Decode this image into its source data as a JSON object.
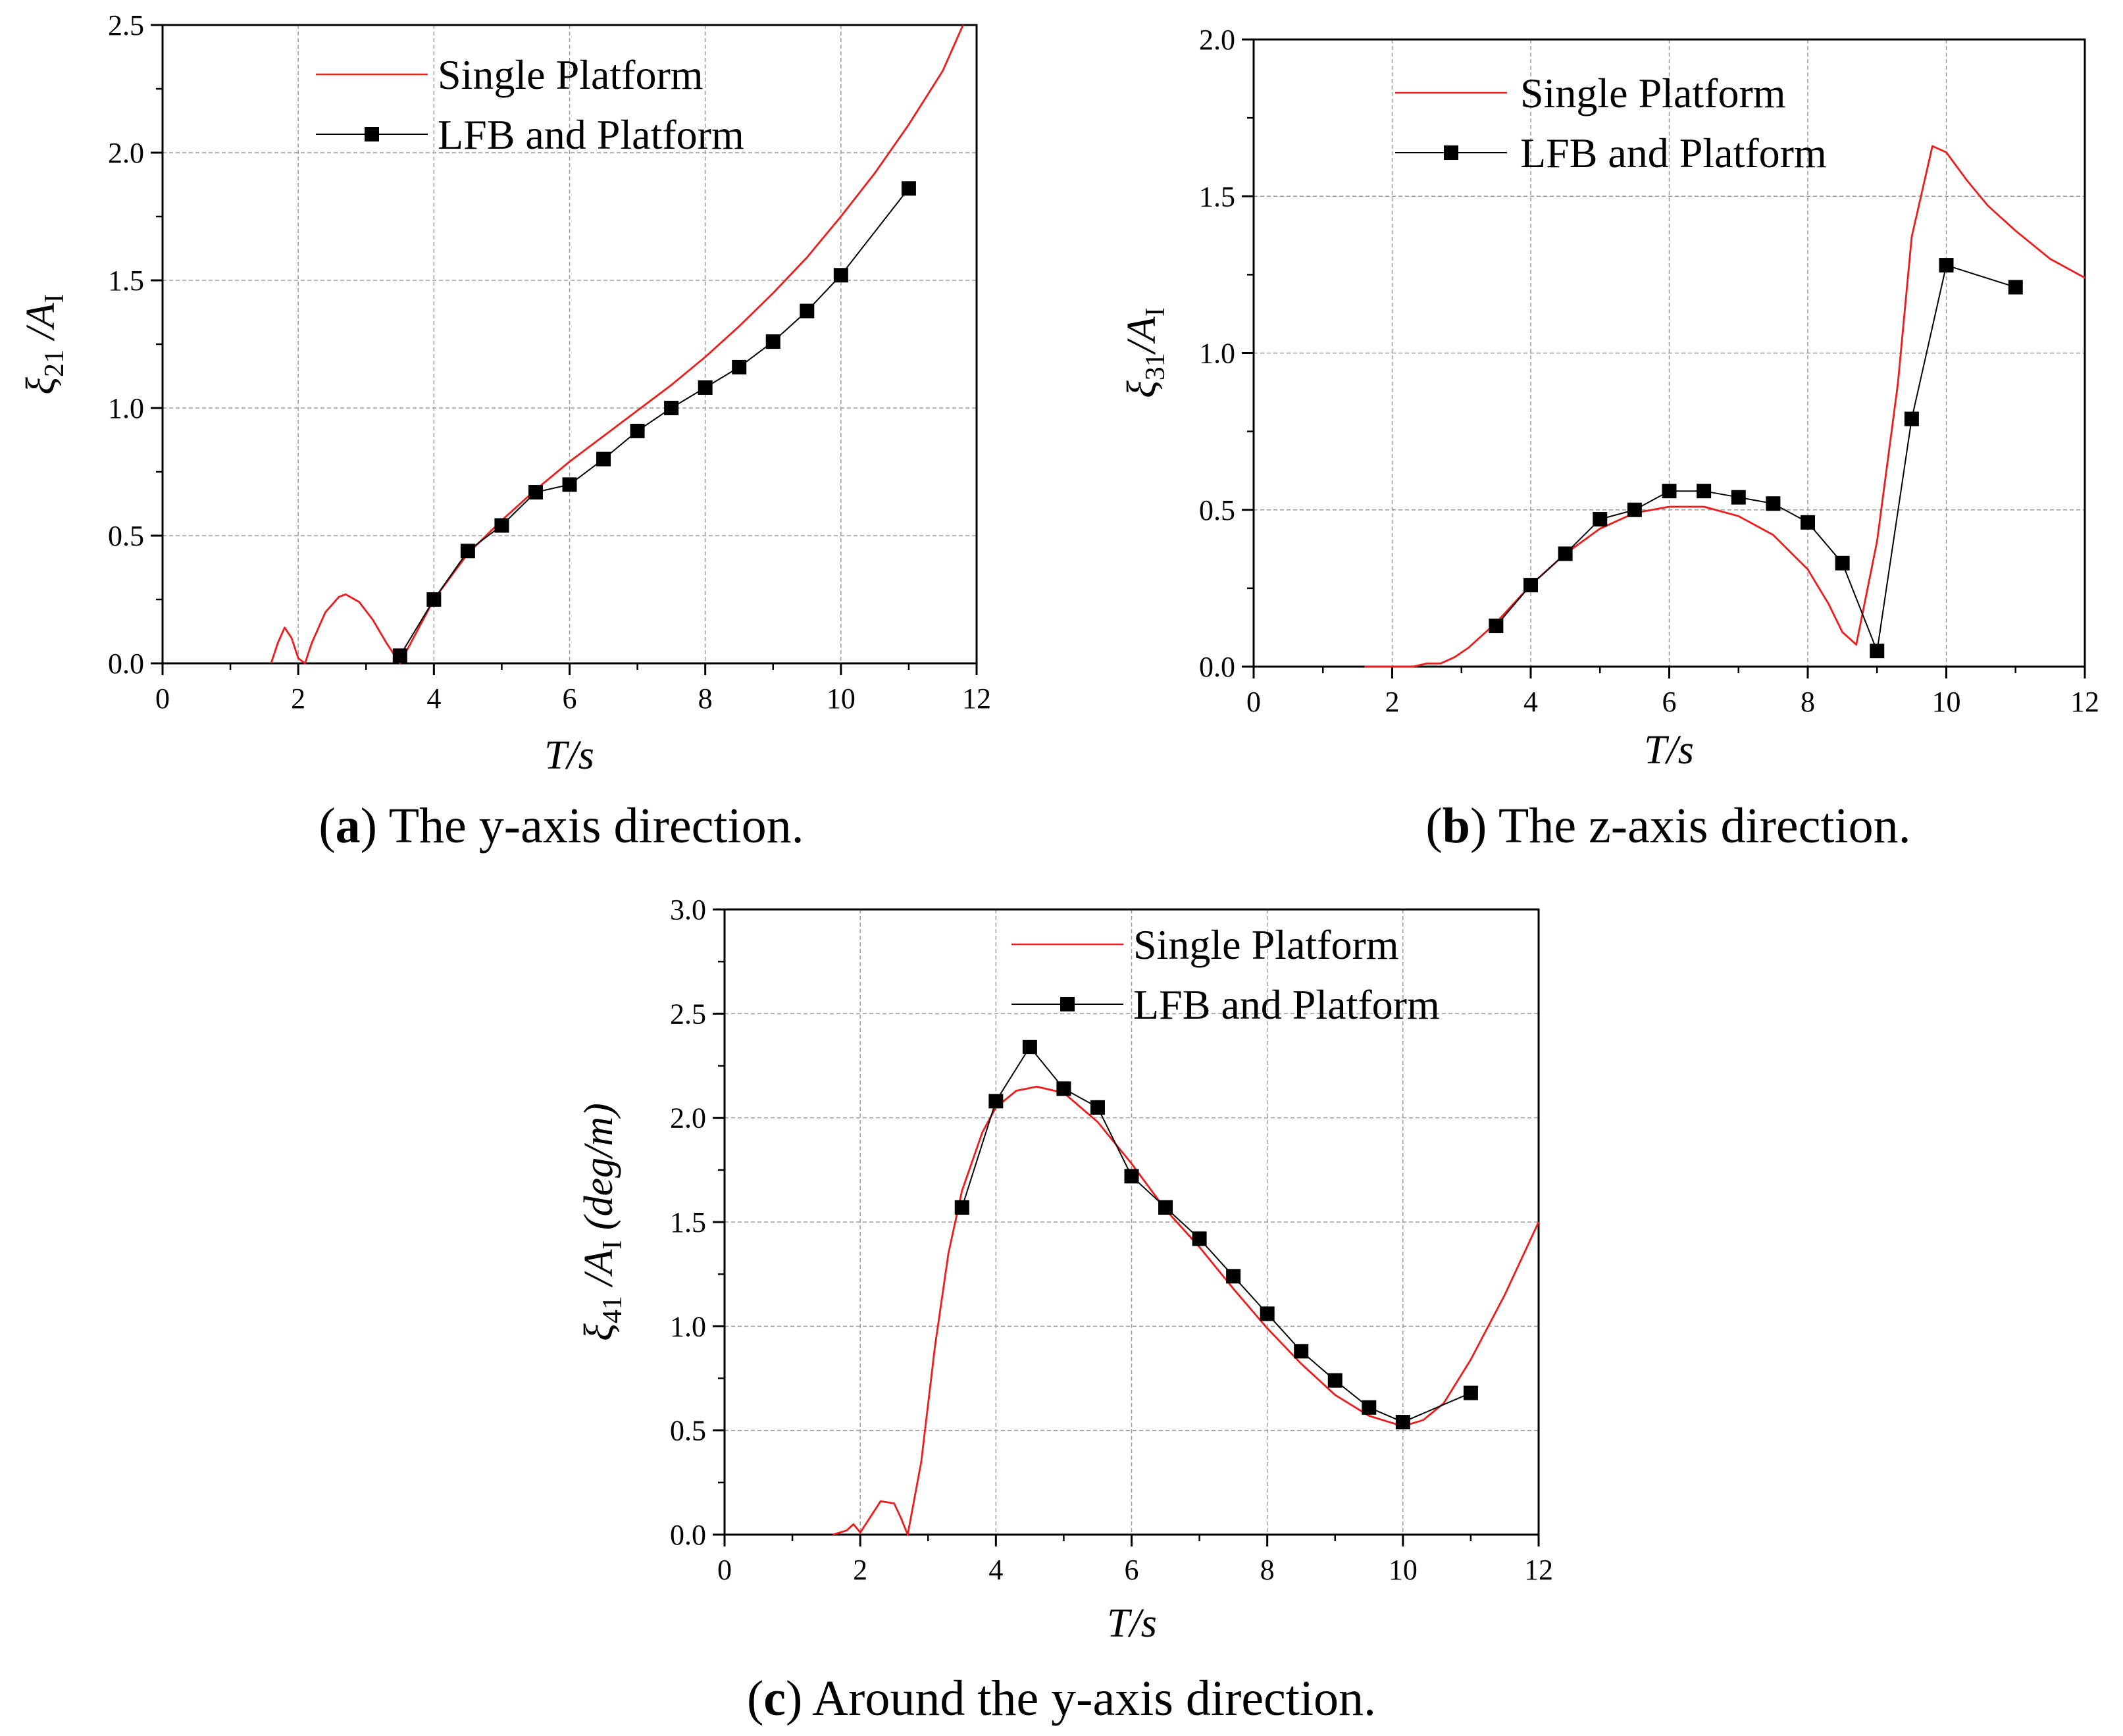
{
  "chart_data": [
    {
      "type": "line",
      "caption": {
        "letter": "a",
        "text": ") The y-axis direction."
      },
      "xlabel": "T/s",
      "ylabel": {
        "symbol": "ξ",
        "sub": "21",
        "slash": " /A",
        "sub2": "I",
        "unit": ""
      },
      "xlim": [
        0,
        12
      ],
      "ylim": [
        0,
        2.5
      ],
      "xticks": [
        0,
        2,
        4,
        6,
        8,
        10,
        12
      ],
      "yticks": [
        0.0,
        0.5,
        1.0,
        1.5,
        2.0,
        2.5
      ],
      "yticklabels": [
        "0.0",
        "0.5",
        "1.0",
        "1.5",
        "2.0",
        "2.5"
      ],
      "grid": true,
      "legend_position": "top-left",
      "series": [
        {
          "name": "Single Platform",
          "color": "#ee1c1c",
          "marker": "none",
          "x": [
            1.6,
            1.7,
            1.8,
            1.9,
            2.0,
            2.1,
            2.2,
            2.4,
            2.6,
            2.7,
            2.9,
            3.1,
            3.3,
            3.5,
            3.8,
            4.0,
            4.5,
            5.0,
            5.5,
            6.0,
            6.5,
            7.0,
            7.5,
            8.0,
            8.5,
            9.0,
            9.5,
            10.0,
            10.5,
            11.0,
            11.5,
            11.8
          ],
          "y": [
            0.0,
            0.08,
            0.14,
            0.1,
            0.02,
            0.0,
            0.08,
            0.2,
            0.26,
            0.27,
            0.24,
            0.17,
            0.08,
            0.0,
            0.15,
            0.25,
            0.43,
            0.56,
            0.68,
            0.79,
            0.89,
            0.99,
            1.09,
            1.2,
            1.32,
            1.45,
            1.59,
            1.75,
            1.92,
            2.11,
            2.32,
            2.5
          ]
        },
        {
          "name": "LFB and Platform",
          "color": "#000000",
          "marker": "square",
          "x": [
            3.5,
            4.0,
            4.5,
            5.0,
            5.5,
            6.0,
            6.5,
            7.0,
            7.5,
            8.0,
            8.5,
            9.0,
            9.5,
            10.0,
            11.0
          ],
          "y": [
            0.03,
            0.25,
            0.44,
            0.54,
            0.67,
            0.7,
            0.8,
            0.91,
            1.0,
            1.08,
            1.16,
            1.26,
            1.38,
            1.52,
            1.86
          ]
        }
      ]
    },
    {
      "type": "line",
      "caption": {
        "letter": "b",
        "text": ") The z-axis direction."
      },
      "xlabel": "T/s",
      "ylabel": {
        "symbol": "ξ",
        "sub": "31",
        "slash": "/A",
        "sub2": "I",
        "unit": ""
      },
      "xlim": [
        0,
        12
      ],
      "ylim": [
        0,
        2.0
      ],
      "xticks": [
        0,
        2,
        4,
        6,
        8,
        10,
        12
      ],
      "yticks": [
        0.0,
        0.5,
        1.0,
        1.5,
        2.0
      ],
      "yticklabels": [
        "0.0",
        "0.5",
        "1.0",
        "1.5",
        "2.0"
      ],
      "grid": true,
      "legend_position": "top-left",
      "series": [
        {
          "name": "Single Platform",
          "color": "#ee1c1c",
          "marker": "none",
          "x": [
            1.6,
            2.0,
            2.3,
            2.5,
            2.7,
            2.9,
            3.1,
            3.5,
            4.0,
            4.5,
            5.0,
            5.5,
            6.0,
            6.5,
            7.0,
            7.5,
            8.0,
            8.3,
            8.5,
            8.7,
            9.0,
            9.3,
            9.5,
            9.8,
            10.0,
            10.3,
            10.6,
            11.0,
            11.5,
            12.0
          ],
          "y": [
            0.0,
            0.0,
            0.0,
            0.01,
            0.01,
            0.03,
            0.06,
            0.14,
            0.26,
            0.36,
            0.44,
            0.49,
            0.51,
            0.51,
            0.48,
            0.42,
            0.31,
            0.2,
            0.11,
            0.07,
            0.4,
            0.9,
            1.37,
            1.66,
            1.64,
            1.55,
            1.47,
            1.39,
            1.3,
            1.24
          ]
        },
        {
          "name": "LFB and Platform",
          "color": "#000000",
          "marker": "square",
          "x": [
            3.5,
            4.0,
            4.5,
            5.0,
            5.5,
            6.0,
            6.5,
            7.0,
            7.5,
            8.0,
            8.5,
            9.0,
            9.5,
            10.0,
            11.0
          ],
          "y": [
            0.13,
            0.26,
            0.36,
            0.47,
            0.5,
            0.56,
            0.56,
            0.54,
            0.52,
            0.46,
            0.33,
            0.05,
            0.79,
            1.28,
            1.21
          ]
        }
      ]
    },
    {
      "type": "line",
      "caption": {
        "letter": "c",
        "text": ") Around the y-axis direction."
      },
      "xlabel": "T/s",
      "ylabel": {
        "symbol": "ξ",
        "sub": "41",
        "slash": " /A",
        "sub2": "I",
        "unit": " (deg/m)"
      },
      "xlim": [
        0,
        12
      ],
      "ylim": [
        0,
        3.0
      ],
      "xticks": [
        0,
        2,
        4,
        6,
        8,
        10,
        12
      ],
      "yticks": [
        0.0,
        0.5,
        1.0,
        1.5,
        2.0,
        2.5,
        3.0
      ],
      "yticklabels": [
        "0.0",
        "0.5",
        "1.0",
        "1.5",
        "2.0",
        "2.5",
        "3.0"
      ],
      "grid": true,
      "legend_position": "top-right",
      "series": [
        {
          "name": "Single Platform",
          "color": "#ee1c1c",
          "marker": "none",
          "x": [
            1.6,
            1.8,
            1.9,
            2.0,
            2.1,
            2.3,
            2.5,
            2.6,
            2.7,
            2.9,
            3.1,
            3.3,
            3.5,
            3.8,
            4.0,
            4.3,
            4.6,
            5.0,
            5.5,
            6.0,
            6.5,
            7.0,
            7.5,
            8.0,
            8.5,
            9.0,
            9.5,
            10.0,
            10.3,
            10.6,
            11.0,
            11.5,
            12.0
          ],
          "y": [
            0.0,
            0.02,
            0.05,
            0.01,
            0.06,
            0.16,
            0.15,
            0.08,
            0.0,
            0.35,
            0.9,
            1.35,
            1.65,
            1.93,
            2.05,
            2.13,
            2.15,
            2.12,
            1.98,
            1.78,
            1.56,
            1.38,
            1.18,
            0.99,
            0.82,
            0.67,
            0.57,
            0.52,
            0.55,
            0.63,
            0.84,
            1.15,
            1.5
          ]
        },
        {
          "name": "LFB and Platform",
          "color": "#000000",
          "marker": "square",
          "x": [
            3.5,
            4.0,
            4.5,
            5.0,
            5.5,
            6.0,
            6.5,
            7.0,
            7.5,
            8.0,
            8.5,
            9.0,
            9.5,
            10.0,
            11.0
          ],
          "y": [
            1.57,
            2.08,
            2.34,
            2.14,
            2.05,
            1.72,
            1.57,
            1.42,
            1.24,
            1.06,
            0.88,
            0.74,
            0.61,
            0.54,
            0.68
          ]
        }
      ]
    }
  ]
}
